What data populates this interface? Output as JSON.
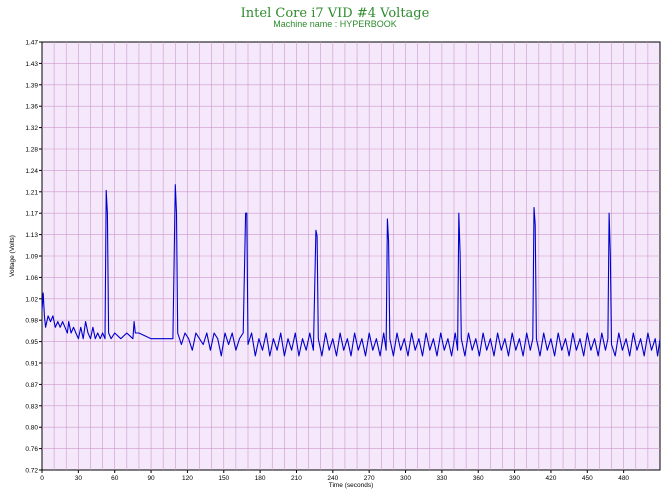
{
  "chart_data": {
    "type": "line",
    "title": "Intel Core i7 VID #4 Voltage",
    "subtitle": "Machine name : HYPERBOOK",
    "xlabel": "Time (seconds)",
    "ylabel": "Voltage (Volts)",
    "xlim": [
      0,
      510
    ],
    "ylim": [
      0.72,
      1.47
    ],
    "x_ticks": [
      "0",
      "30",
      "60",
      "90",
      "120",
      "150",
      "180",
      "210",
      "240",
      "270",
      "300",
      "330",
      "360",
      "390",
      "420",
      "450",
      "480"
    ],
    "y_ticks": [
      "0.72",
      "0.76",
      "0.80",
      "0.83",
      "0.87",
      "0.91",
      "0.95",
      "0.98",
      "1.02",
      "1.06",
      "1.09",
      "1.13",
      "1.17",
      "1.21",
      "1.24",
      "1.28",
      "1.32",
      "1.36",
      "1.39",
      "1.43",
      "1.47"
    ],
    "grid": true,
    "colors": {
      "plot_bg": "#f6e8fb",
      "grid": "#cc99cc",
      "line": "#0000cc",
      "title": "#2e8b2e"
    },
    "series": [
      {
        "values": [
          [
            0,
            1.0
          ],
          [
            1,
            1.03
          ],
          [
            2,
            0.99
          ],
          [
            3,
            0.97
          ],
          [
            5,
            0.99
          ],
          [
            7,
            0.98
          ],
          [
            9,
            0.99
          ],
          [
            11,
            0.97
          ],
          [
            13,
            0.98
          ],
          [
            15,
            0.97
          ],
          [
            17,
            0.98
          ],
          [
            19,
            0.97
          ],
          [
            21,
            0.96
          ],
          [
            22,
            0.98
          ],
          [
            24,
            0.96
          ],
          [
            26,
            0.97
          ],
          [
            28,
            0.96
          ],
          [
            30,
            0.95
          ],
          [
            32,
            0.97
          ],
          [
            34,
            0.95
          ],
          [
            36,
            0.98
          ],
          [
            38,
            0.96
          ],
          [
            40,
            0.95
          ],
          [
            42,
            0.97
          ],
          [
            44,
            0.95
          ],
          [
            46,
            0.96
          ],
          [
            48,
            0.95
          ],
          [
            50,
            0.96
          ],
          [
            52,
            0.95
          ],
          [
            53,
            1.21
          ],
          [
            54,
            1.17
          ],
          [
            55,
            0.96
          ],
          [
            57,
            0.95
          ],
          [
            60,
            0.96
          ],
          [
            65,
            0.95
          ],
          [
            70,
            0.96
          ],
          [
            75,
            0.95
          ],
          [
            76,
            0.98
          ],
          [
            77,
            0.96
          ],
          [
            80,
            0.96
          ],
          [
            90,
            0.95
          ],
          [
            100,
            0.95
          ],
          [
            108,
            0.95
          ],
          [
            110,
            1.22
          ],
          [
            111,
            1.17
          ],
          [
            112,
            0.96
          ],
          [
            115,
            0.94
          ],
          [
            118,
            0.96
          ],
          [
            121,
            0.95
          ],
          [
            124,
            0.93
          ],
          [
            127,
            0.96
          ],
          [
            130,
            0.95
          ],
          [
            133,
            0.94
          ],
          [
            136,
            0.96
          ],
          [
            139,
            0.93
          ],
          [
            142,
            0.96
          ],
          [
            145,
            0.95
          ],
          [
            148,
            0.92
          ],
          [
            151,
            0.96
          ],
          [
            154,
            0.94
          ],
          [
            157,
            0.96
          ],
          [
            160,
            0.93
          ],
          [
            163,
            0.95
          ],
          [
            166,
            0.96
          ],
          [
            168,
            1.17
          ],
          [
            169,
            1.17
          ],
          [
            170,
            0.94
          ],
          [
            173,
            0.96
          ],
          [
            176,
            0.92
          ],
          [
            179,
            0.95
          ],
          [
            182,
            0.93
          ],
          [
            185,
            0.96
          ],
          [
            188,
            0.92
          ],
          [
            191,
            0.95
          ],
          [
            194,
            0.93
          ],
          [
            197,
            0.96
          ],
          [
            200,
            0.92
          ],
          [
            203,
            0.95
          ],
          [
            206,
            0.93
          ],
          [
            209,
            0.96
          ],
          [
            212,
            0.92
          ],
          [
            215,
            0.95
          ],
          [
            218,
            0.93
          ],
          [
            221,
            0.96
          ],
          [
            224,
            0.93
          ],
          [
            226,
            1.14
          ],
          [
            227,
            1.13
          ],
          [
            228,
            0.95
          ],
          [
            231,
            0.92
          ],
          [
            234,
            0.96
          ],
          [
            237,
            0.93
          ],
          [
            240,
            0.95
          ],
          [
            243,
            0.92
          ],
          [
            246,
            0.96
          ],
          [
            249,
            0.93
          ],
          [
            252,
            0.95
          ],
          [
            255,
            0.92
          ],
          [
            258,
            0.96
          ],
          [
            261,
            0.93
          ],
          [
            264,
            0.95
          ],
          [
            267,
            0.92
          ],
          [
            270,
            0.96
          ],
          [
            273,
            0.93
          ],
          [
            276,
            0.95
          ],
          [
            279,
            0.92
          ],
          [
            282,
            0.96
          ],
          [
            284,
            0.93
          ],
          [
            285,
            1.16
          ],
          [
            286,
            1.12
          ],
          [
            287,
            0.95
          ],
          [
            290,
            0.92
          ],
          [
            293,
            0.96
          ],
          [
            296,
            0.93
          ],
          [
            299,
            0.95
          ],
          [
            302,
            0.92
          ],
          [
            305,
            0.96
          ],
          [
            308,
            0.93
          ],
          [
            311,
            0.95
          ],
          [
            314,
            0.92
          ],
          [
            317,
            0.96
          ],
          [
            320,
            0.93
          ],
          [
            323,
            0.95
          ],
          [
            326,
            0.92
          ],
          [
            329,
            0.96
          ],
          [
            332,
            0.93
          ],
          [
            335,
            0.95
          ],
          [
            338,
            0.92
          ],
          [
            341,
            0.96
          ],
          [
            343,
            0.93
          ],
          [
            344,
            1.17
          ],
          [
            345,
            1.1
          ],
          [
            346,
            0.95
          ],
          [
            349,
            0.92
          ],
          [
            352,
            0.96
          ],
          [
            355,
            0.93
          ],
          [
            358,
            0.95
          ],
          [
            361,
            0.92
          ],
          [
            364,
            0.96
          ],
          [
            367,
            0.93
          ],
          [
            370,
            0.95
          ],
          [
            373,
            0.92
          ],
          [
            376,
            0.96
          ],
          [
            379,
            0.93
          ],
          [
            382,
            0.95
          ],
          [
            385,
            0.92
          ],
          [
            388,
            0.96
          ],
          [
            391,
            0.93
          ],
          [
            394,
            0.95
          ],
          [
            397,
            0.92
          ],
          [
            400,
            0.96
          ],
          [
            403,
            0.93
          ],
          [
            405,
            0.95
          ],
          [
            406,
            1.18
          ],
          [
            407,
            1.15
          ],
          [
            408,
            0.95
          ],
          [
            411,
            0.92
          ],
          [
            414,
            0.96
          ],
          [
            417,
            0.93
          ],
          [
            420,
            0.95
          ],
          [
            423,
            0.92
          ],
          [
            426,
            0.96
          ],
          [
            429,
            0.93
          ],
          [
            432,
            0.95
          ],
          [
            435,
            0.92
          ],
          [
            438,
            0.96
          ],
          [
            441,
            0.93
          ],
          [
            444,
            0.95
          ],
          [
            447,
            0.92
          ],
          [
            450,
            0.96
          ],
          [
            453,
            0.93
          ],
          [
            456,
            0.95
          ],
          [
            459,
            0.92
          ],
          [
            462,
            0.96
          ],
          [
            465,
            0.93
          ],
          [
            467,
            0.95
          ],
          [
            468,
            1.17
          ],
          [
            469,
            1.1
          ],
          [
            470,
            0.94
          ],
          [
            473,
            0.92
          ],
          [
            476,
            0.96
          ],
          [
            479,
            0.93
          ],
          [
            482,
            0.95
          ],
          [
            485,
            0.92
          ],
          [
            488,
            0.96
          ],
          [
            491,
            0.93
          ],
          [
            494,
            0.95
          ],
          [
            497,
            0.92
          ],
          [
            500,
            0.96
          ],
          [
            503,
            0.93
          ],
          [
            506,
            0.95
          ],
          [
            508,
            0.92
          ],
          [
            510,
            0.95
          ]
        ]
      }
    ]
  }
}
